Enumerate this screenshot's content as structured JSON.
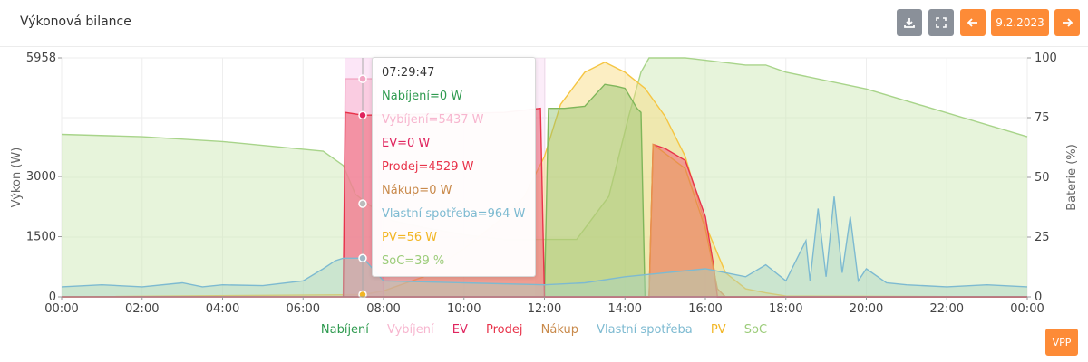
{
  "header": {
    "title": "Výkonová bilance",
    "date_label": "9.2.2023",
    "icons": [
      "download-icon",
      "fullscreen-icon",
      "arrow-left-icon",
      "arrow-right-icon"
    ]
  },
  "vpp_label": "VPP",
  "colors": {
    "Nabíjení": "#2e9a4f",
    "Vybíjení": "#f7b6cf",
    "EV": "#e0245e",
    "Prodej": "#e8334a",
    "Nákup": "#c98a4b",
    "Vlastní spotřeba": "#7dbad1",
    "PV": "#f2b624",
    "SoC": "#9ccc7a"
  },
  "tooltip": {
    "time": "07:29:47",
    "lines": [
      {
        "series": "Nabíjení",
        "text": "Nabíjení=0 W"
      },
      {
        "series": "Vybíjení",
        "text": "Vybíjení=5437 W"
      },
      {
        "series": "EV",
        "text": "EV=0 W"
      },
      {
        "series": "Prodej",
        "text": "Prodej=4529 W"
      },
      {
        "series": "Nákup",
        "text": "Nákup=0 W"
      },
      {
        "series": "Vlastní spotřeba",
        "text": "Vlastní spotřeba=964 W"
      },
      {
        "series": "PV",
        "text": "PV=56 W"
      },
      {
        "series": "SoC",
        "text": "SoC=39 %"
      }
    ]
  },
  "chart_data": {
    "type": "area",
    "xlabel": "",
    "ylabel": "Výkon (W)",
    "y2label": "Baterie (%)",
    "xlim": [
      0,
      24
    ],
    "ylim": [
      0,
      5958
    ],
    "y2lim": [
      0,
      100
    ],
    "x_tick_labels": [
      "00:00",
      "02:00",
      "04:00",
      "06:00",
      "08:00",
      "10:00",
      "12:00",
      "14:00",
      "16:00",
      "18:00",
      "20:00",
      "22:00",
      "00:00"
    ],
    "y_tick_labels": [
      "0",
      "1500",
      "3000",
      "5958"
    ],
    "y_ticks": [
      0,
      1500,
      3000,
      5958
    ],
    "y2_tick_labels": [
      "0",
      "25",
      "50",
      "75",
      "100"
    ],
    "y2_ticks": [
      0,
      25,
      50,
      75,
      100
    ],
    "grid": true,
    "legend_position": "bottom",
    "legend": [
      "Nabíjení",
      "Vybíjení",
      "EV",
      "Prodej",
      "Nákup",
      "Vlastní spotřeba",
      "PV",
      "SoC"
    ],
    "series": [
      {
        "name": "SoC",
        "axis": "right",
        "x": [
          0,
          2,
          4,
          6.5,
          7.0,
          7.3,
          7.6,
          8.2,
          9,
          10,
          11,
          12,
          12.8,
          13.6,
          14.1,
          14.4,
          14.6,
          15.5,
          16,
          17,
          17.5,
          18,
          20,
          22,
          24
        ],
        "y": [
          68,
          67,
          65,
          61,
          55,
          43,
          39,
          32,
          29,
          26,
          24,
          24,
          24,
          42,
          76,
          94,
          100,
          100,
          99,
          97,
          97,
          94,
          87,
          77,
          67
        ]
      },
      {
        "name": "PV",
        "axis": "left",
        "x": [
          0,
          7.5,
          8,
          9,
          9.4,
          10,
          11,
          11.5,
          12,
          12.4,
          13,
          13.5,
          14,
          14.5,
          15,
          15.5,
          16,
          16.5,
          17,
          17.5,
          18,
          24
        ],
        "y": [
          0,
          56,
          150,
          500,
          800,
          1200,
          2000,
          2500,
          3500,
          4800,
          5600,
          5850,
          5600,
          5200,
          4500,
          3500,
          1800,
          600,
          200,
          100,
          20,
          0
        ]
      },
      {
        "name": "Nabíjení",
        "axis": "left",
        "x": [
          12,
          12.1,
          12.5,
          13,
          13.5,
          13.8,
          14,
          14.3,
          14.4,
          14.5,
          24
        ],
        "y": [
          0,
          4700,
          4700,
          4750,
          5300,
          5250,
          5200,
          4700,
          4600,
          0,
          0
        ]
      },
      {
        "name": "Vybíjení",
        "axis": "left",
        "x": [
          7,
          7.05,
          7.3,
          7.5,
          7.8,
          8,
          12,
          24
        ],
        "y": [
          0,
          5437,
          5437,
          5437,
          5437,
          0,
          0,
          0
        ]
      },
      {
        "name": "Prodej",
        "axis": "left",
        "x": [
          7,
          7.05,
          7.5,
          11,
          11.9,
          12,
          14.6,
          14.7,
          15,
          15.5,
          16,
          16.2,
          16.3,
          24
        ],
        "y": [
          0,
          4600,
          4529,
          4600,
          4700,
          0,
          0,
          3800,
          3700,
          3400,
          2000,
          800,
          0,
          0
        ]
      },
      {
        "name": "Nákup",
        "axis": "left",
        "x": [
          0,
          6.9,
          7,
          12,
          14.6,
          14.7,
          15.5,
          16,
          16.3,
          16.5,
          24
        ],
        "y": [
          0,
          0,
          0,
          0,
          0,
          3800,
          3200,
          1700,
          200,
          0,
          0
        ]
      },
      {
        "name": "Vlastní spotřeba",
        "axis": "left",
        "x": [
          0,
          1,
          2,
          3,
          3.5,
          4,
          5,
          6,
          6.5,
          6.8,
          7,
          7.5,
          8,
          10,
          12,
          13,
          14,
          15,
          16,
          17,
          17.5,
          18,
          18.5,
          18.6,
          18.8,
          19,
          19.2,
          19.4,
          19.6,
          19.8,
          20,
          20.5,
          21,
          22,
          23,
          24
        ],
        "y": [
          250,
          300,
          250,
          350,
          250,
          300,
          280,
          400,
          700,
          900,
          964,
          964,
          400,
          350,
          300,
          350,
          500,
          600,
          700,
          500,
          800,
          400,
          1400,
          400,
          2200,
          500,
          2500,
          600,
          2000,
          400,
          700,
          350,
          300,
          250,
          300,
          250
        ]
      },
      {
        "name": "EV",
        "axis": "left",
        "x": [
          0,
          24
        ],
        "y": [
          0,
          0
        ]
      }
    ]
  }
}
